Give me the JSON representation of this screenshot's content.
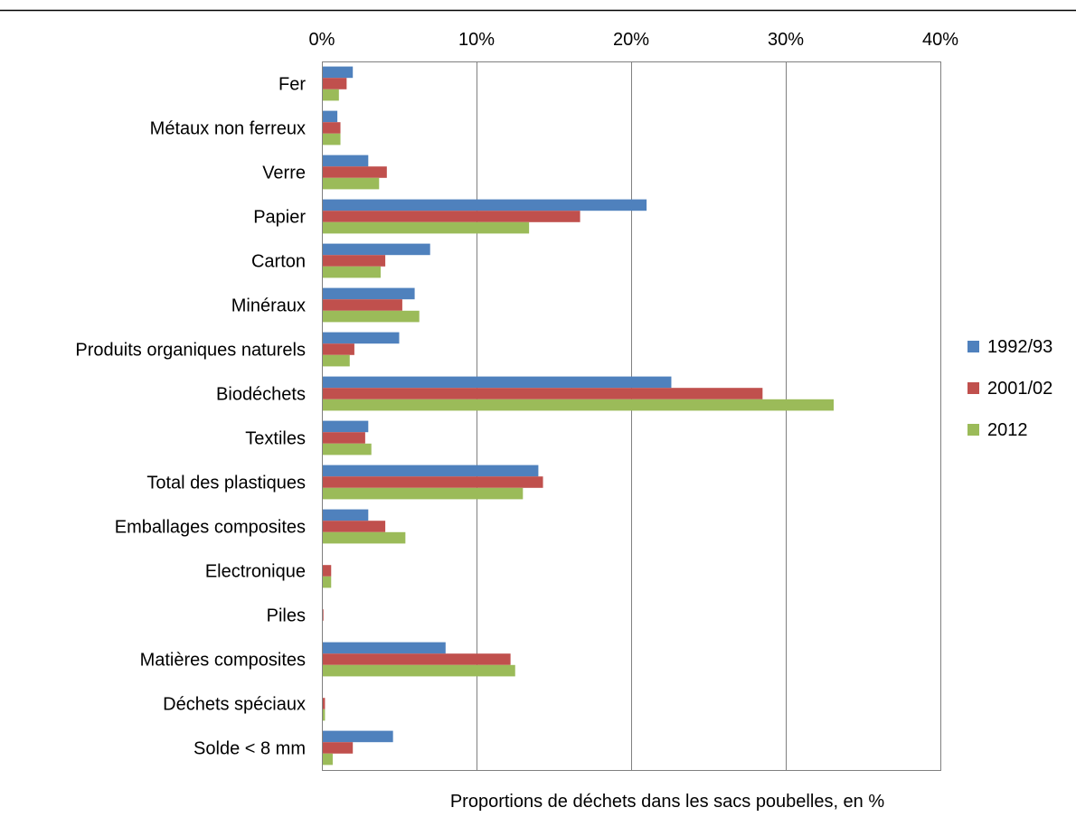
{
  "chart_data": {
    "type": "bar",
    "orientation": "horizontal",
    "title": "",
    "xlabel": "Proportions de déchets dans les sacs poubelles, en %",
    "ylabel": "",
    "xlim": [
      0,
      40
    ],
    "x_ticks": [
      "0%",
      "10%",
      "20%",
      "30%",
      "40%"
    ],
    "x_tick_values": [
      0,
      10,
      20,
      30,
      40
    ],
    "x_axis_position": "top",
    "grid": "vertical",
    "legend_position": "right",
    "categories": [
      "Fer",
      "Métaux non ferreux",
      "Verre",
      "Papier",
      "Carton",
      "Minéraux",
      "Produits organiques naturels",
      "Biodéchets",
      "Textiles",
      "Total des plastiques",
      "Emballages composites",
      "Electronique",
      "Piles",
      "Matières composites",
      "Déchets spéciaux",
      "Solde < 8 mm"
    ],
    "series": [
      {
        "name": "1992/93",
        "color": "#4F81BD",
        "values": [
          2.0,
          1.0,
          3.0,
          21.0,
          7.0,
          6.0,
          5.0,
          22.6,
          3.0,
          14.0,
          3.0,
          0.0,
          0.0,
          8.0,
          0.0,
          4.6
        ]
      },
      {
        "name": "2001/02",
        "color": "#C0504D",
        "values": [
          1.6,
          1.2,
          4.2,
          16.7,
          4.1,
          5.2,
          2.1,
          28.5,
          2.8,
          14.3,
          4.1,
          0.6,
          0.1,
          12.2,
          0.2,
          2.0
        ]
      },
      {
        "name": "2012",
        "color": "#9BBB59",
        "values": [
          1.1,
          1.2,
          3.7,
          13.4,
          3.8,
          6.3,
          1.8,
          33.1,
          3.2,
          13.0,
          5.4,
          0.6,
          0.0,
          12.5,
          0.2,
          0.7
        ]
      }
    ]
  }
}
